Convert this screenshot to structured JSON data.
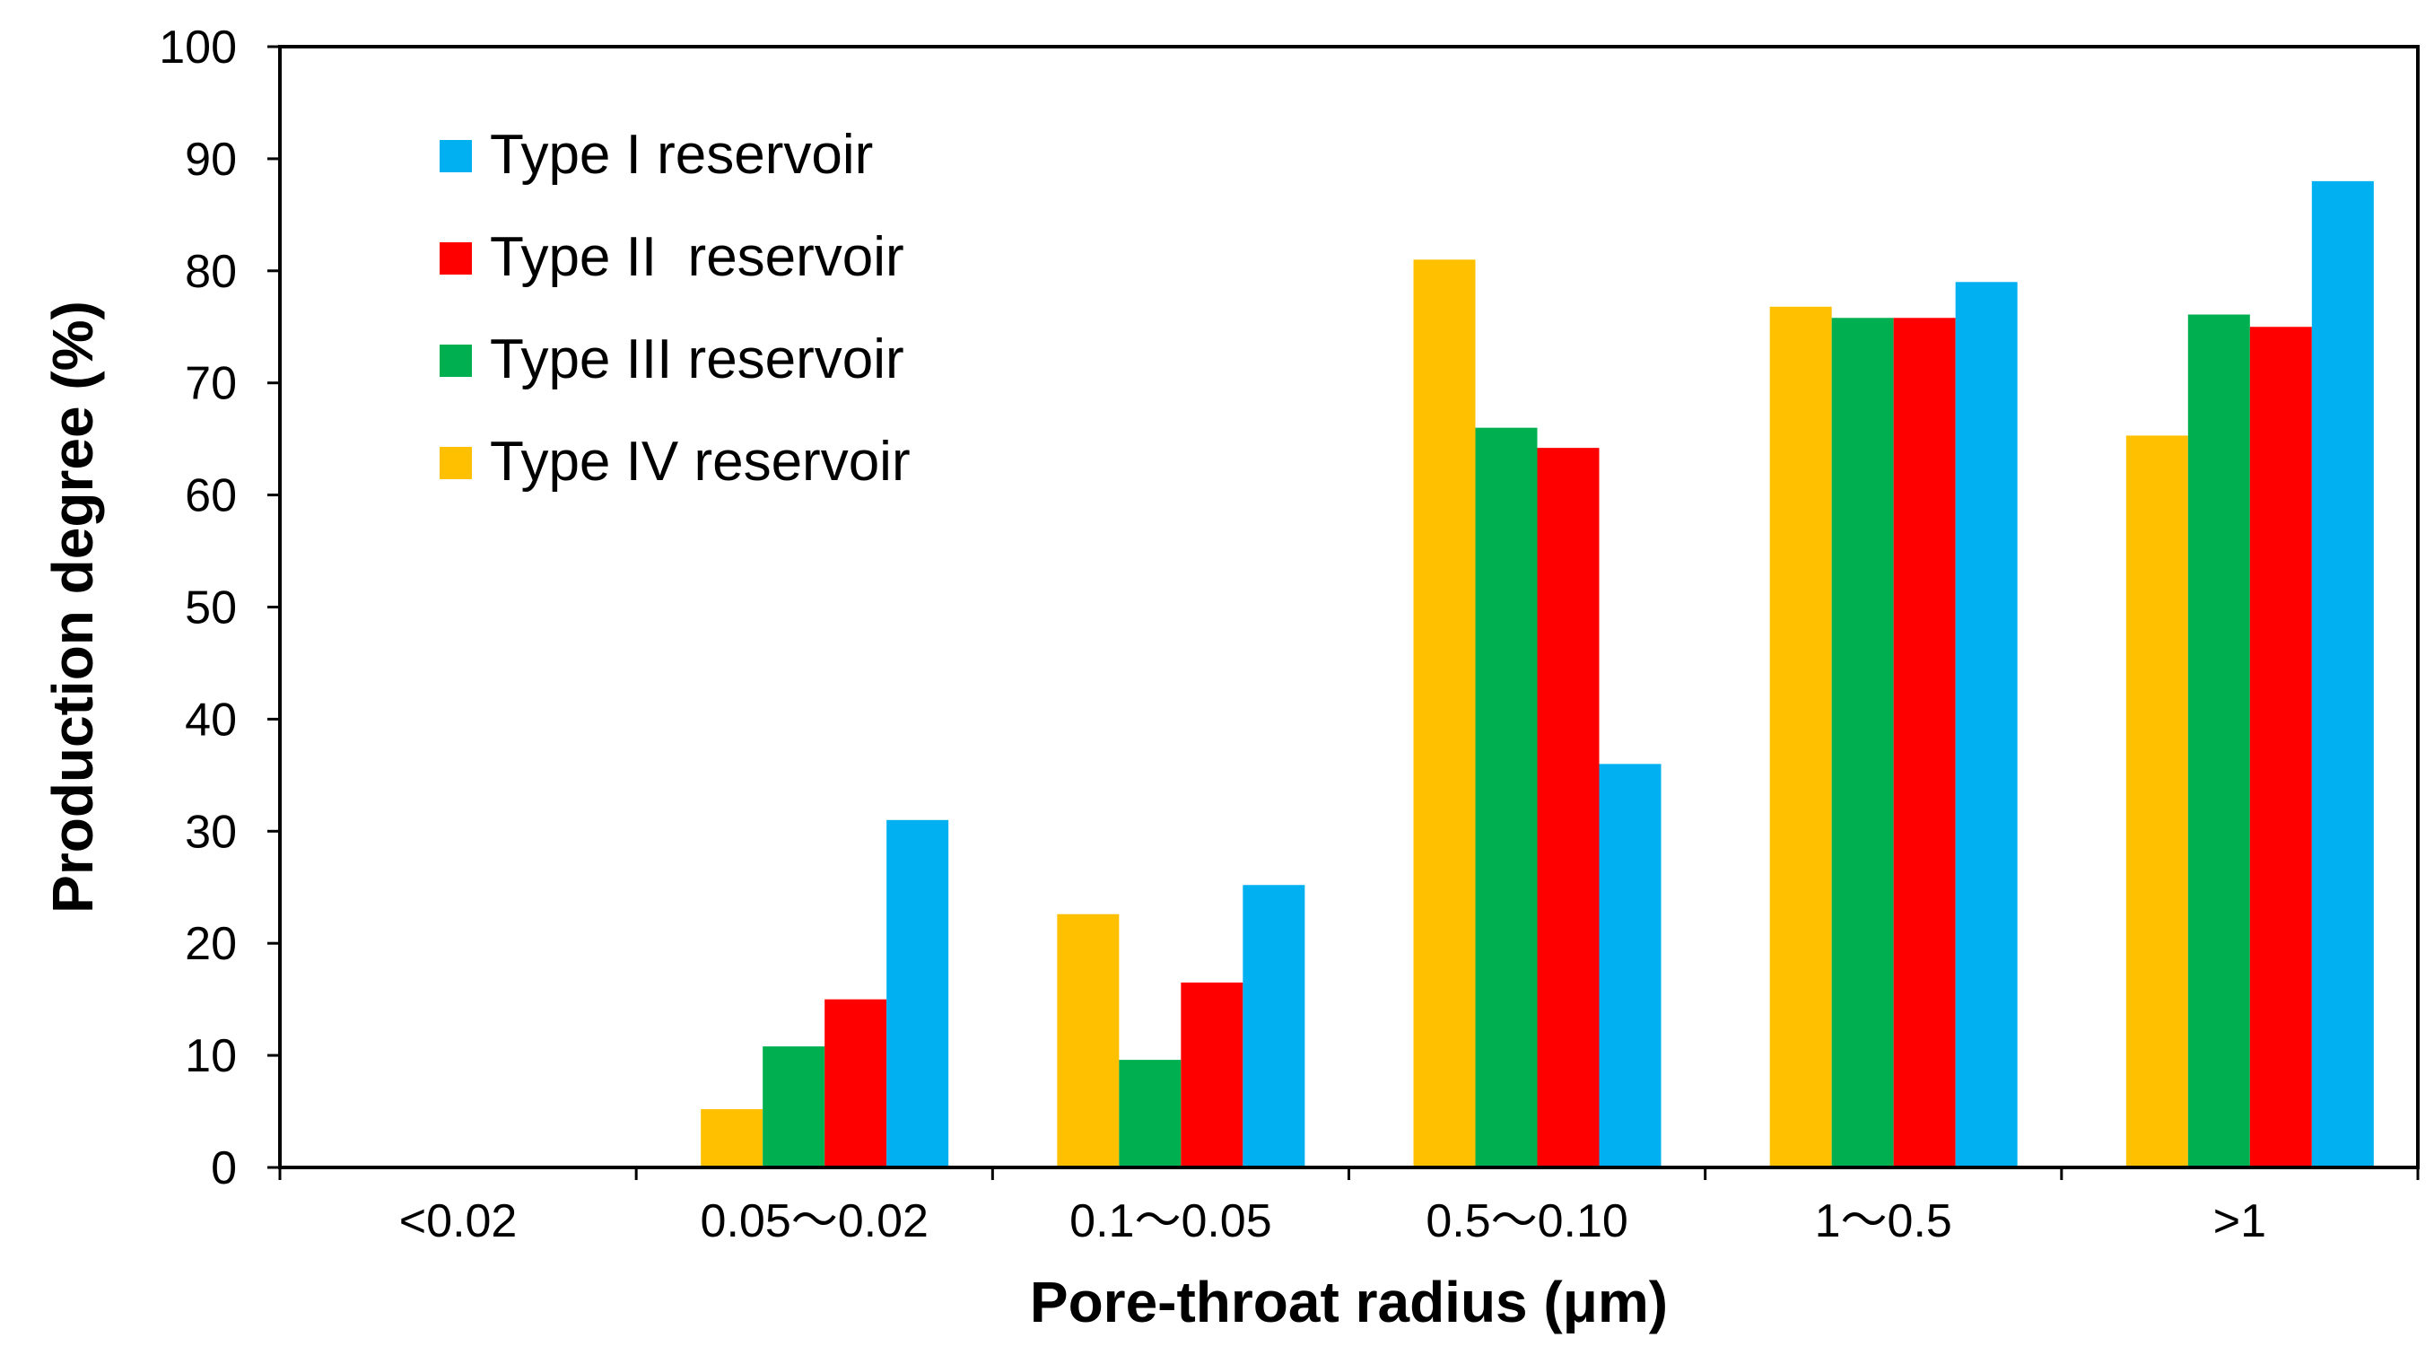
{
  "chart_data": {
    "type": "bar",
    "title": "",
    "xlabel": "Pore-throat radius (μm)",
    "ylabel": "Production degree (%)",
    "ylim": [
      0,
      100
    ],
    "ytick_step": 10,
    "grid": false,
    "legend_position": "top-left",
    "categories": [
      "<0.02",
      "0.05～0.02",
      "0.1～0.05",
      "0.5～0.10",
      "1～0.5",
      ">1"
    ],
    "bar_order": [
      "Type IV reservoir",
      "Type III reservoir",
      "Type II  reservoir",
      "Type I reservoir"
    ],
    "legend_order": [
      "Type I reservoir",
      "Type II  reservoir",
      "Type III reservoir",
      "Type IV reservoir"
    ],
    "series": [
      {
        "name": "Type I reservoir",
        "color": "#00B0F0",
        "values": [
          0,
          31,
          25.2,
          36,
          79,
          88
        ]
      },
      {
        "name": "Type II  reservoir",
        "color": "#FF0000",
        "values": [
          0,
          15,
          16.5,
          64.2,
          75.8,
          75
        ]
      },
      {
        "name": "Type III reservoir",
        "color": "#00B050",
        "values": [
          0,
          10.8,
          9.6,
          66,
          75.8,
          76.1
        ]
      },
      {
        "name": "Type IV reservoir",
        "color": "#FFC000",
        "values": [
          0,
          5.2,
          22.6,
          81,
          76.8,
          65.3
        ]
      }
    ]
  }
}
